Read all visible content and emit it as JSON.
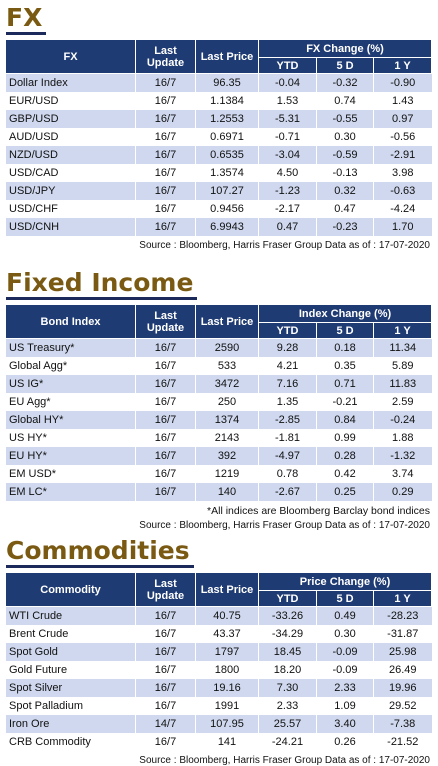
{
  "headers": {
    "last_update": "Last Update",
    "last_price": "Last Price",
    "ytd": "YTD",
    "d5": "5 D",
    "y1": "1 Y"
  },
  "fx": {
    "title": "FX",
    "col_name": "FX",
    "change_header": "FX Change (%)",
    "rows": [
      {
        "name": "Dollar Index",
        "date": "16/7",
        "price": "96.35",
        "ytd": "-0.04",
        "d5": "-0.32",
        "y1": "-0.90"
      },
      {
        "name": "EUR/USD",
        "date": "16/7",
        "price": "1.1384",
        "ytd": "1.53",
        "d5": "0.74",
        "y1": "1.43"
      },
      {
        "name": "GBP/USD",
        "date": "16/7",
        "price": "1.2553",
        "ytd": "-5.31",
        "d5": "-0.55",
        "y1": "0.97"
      },
      {
        "name": "AUD/USD",
        "date": "16/7",
        "price": "0.6971",
        "ytd": "-0.71",
        "d5": "0.30",
        "y1": "-0.56"
      },
      {
        "name": "NZD/USD",
        "date": "16/7",
        "price": "0.6535",
        "ytd": "-3.04",
        "d5": "-0.59",
        "y1": "-2.91"
      },
      {
        "name": "USD/CAD",
        "date": "16/7",
        "price": "1.3574",
        "ytd": "4.50",
        "d5": "-0.13",
        "y1": "3.98"
      },
      {
        "name": "USD/JPY",
        "date": "16/7",
        "price": "107.27",
        "ytd": "-1.23",
        "d5": "0.32",
        "y1": "-0.63"
      },
      {
        "name": "USD/CHF",
        "date": "16/7",
        "price": "0.9456",
        "ytd": "-2.17",
        "d5": "0.47",
        "y1": "-4.24"
      },
      {
        "name": "USD/CNH",
        "date": "16/7",
        "price": "6.9943",
        "ytd": "0.47",
        "d5": "-0.23",
        "y1": "1.70"
      }
    ],
    "source": "Source : Bloomberg, Harris Fraser Group Data as of : 17-07-2020"
  },
  "fixed_income": {
    "title": "Fixed Income",
    "col_name": "Bond Index",
    "change_header": "Index Change (%)",
    "rows": [
      {
        "name": "US Treasury*",
        "date": "16/7",
        "price": "2590",
        "ytd": "9.28",
        "d5": "0.18",
        "y1": "11.34"
      },
      {
        "name": "Global Agg*",
        "date": "16/7",
        "price": "533",
        "ytd": "4.21",
        "d5": "0.35",
        "y1": "5.89"
      },
      {
        "name": "US IG*",
        "date": "16/7",
        "price": "3472",
        "ytd": "7.16",
        "d5": "0.71",
        "y1": "11.83"
      },
      {
        "name": "EU Agg*",
        "date": "16/7",
        "price": "250",
        "ytd": "1.35",
        "d5": "-0.21",
        "y1": "2.59"
      },
      {
        "name": "Global HY*",
        "date": "16/7",
        "price": "1374",
        "ytd": "-2.85",
        "d5": "0.84",
        "y1": "-0.24"
      },
      {
        "name": "US HY*",
        "date": "16/7",
        "price": "2143",
        "ytd": "-1.81",
        "d5": "0.99",
        "y1": "1.88"
      },
      {
        "name": "EU HY*",
        "date": "16/7",
        "price": "392",
        "ytd": "-4.97",
        "d5": "0.28",
        "y1": "-1.32"
      },
      {
        "name": "EM USD*",
        "date": "16/7",
        "price": "1219",
        "ytd": "0.78",
        "d5": "0.42",
        "y1": "3.74"
      },
      {
        "name": "EM LC*",
        "date": "16/7",
        "price": "140",
        "ytd": "-2.67",
        "d5": "0.25",
        "y1": "0.29"
      }
    ],
    "note": "*All indices are Bloomberg Barclay bond indices",
    "source": "Source : Bloomberg, Harris Fraser Group Data as of : 17-07-2020"
  },
  "commodities": {
    "title": "Commodities",
    "col_name": "Commodity",
    "change_header": "Price Change (%)",
    "rows": [
      {
        "name": "WTI Crude",
        "date": "16/7",
        "price": "40.75",
        "ytd": "-33.26",
        "d5": "0.49",
        "y1": "-28.23"
      },
      {
        "name": "Brent Crude",
        "date": "16/7",
        "price": "43.37",
        "ytd": "-34.29",
        "d5": "0.30",
        "y1": "-31.87"
      },
      {
        "name": "Spot Gold",
        "date": "16/7",
        "price": "1797",
        "ytd": "18.45",
        "d5": "-0.09",
        "y1": "25.98"
      },
      {
        "name": "Gold Future",
        "date": "16/7",
        "price": "1800",
        "ytd": "18.20",
        "d5": "-0.09",
        "y1": "26.49"
      },
      {
        "name": "Spot Silver",
        "date": "16/7",
        "price": "19.16",
        "ytd": "7.30",
        "d5": "2.33",
        "y1": "19.96"
      },
      {
        "name": "Spot Palladium",
        "date": "16/7",
        "price": "1991",
        "ytd": "2.33",
        "d5": "1.09",
        "y1": "29.52"
      },
      {
        "name": "Iron Ore",
        "date": "14/7",
        "price": "107.95",
        "ytd": "25.57",
        "d5": "3.40",
        "y1": "-7.38"
      },
      {
        "name": "CRB Commodity",
        "date": "16/7",
        "price": "141",
        "ytd": "-24.21",
        "d5": "0.26",
        "y1": "-21.52"
      }
    ],
    "source": "Source : Bloomberg, Harris Fraser Group Data as of : 17-07-2020"
  }
}
